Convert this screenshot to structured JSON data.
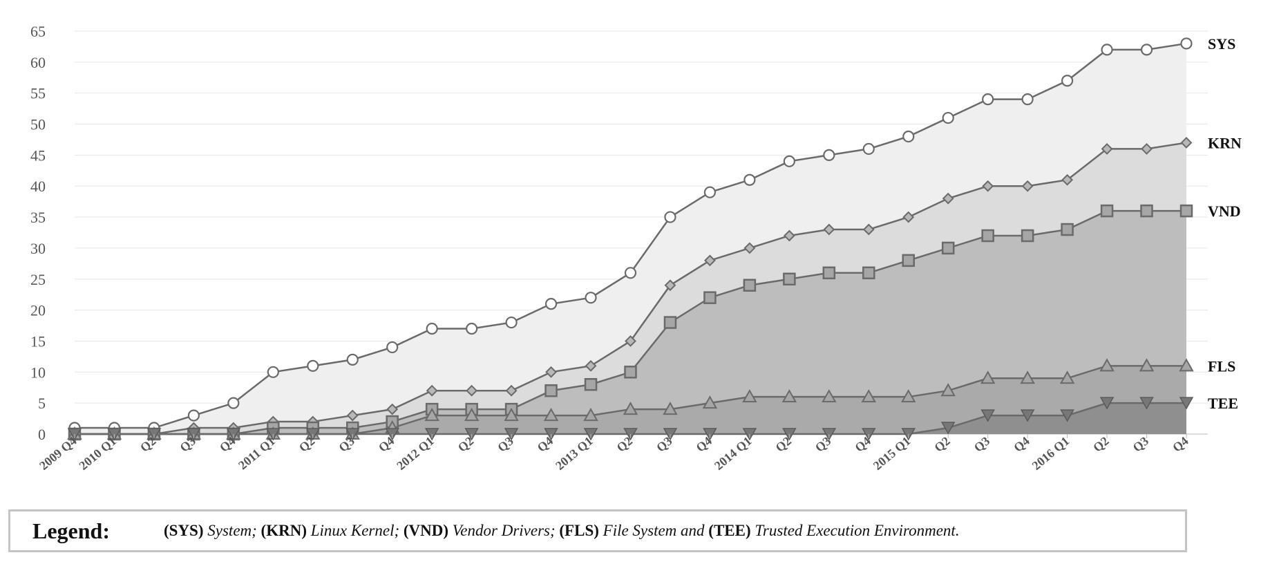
{
  "chart_data": {
    "type": "area",
    "x": [
      "2009 Q4",
      "2010 Q1",
      "Q2",
      "Q3",
      "Q4",
      "2011 Q1",
      "Q2",
      "Q3",
      "Q4",
      "2012 Q1",
      "Q2",
      "Q3",
      "Q4",
      "2013 Q1",
      "Q2",
      "Q3",
      "Q4",
      "2014 Q1",
      "Q2",
      "Q3",
      "Q4",
      "2015 Q1",
      "Q2",
      "Q3",
      "Q4",
      "2016 Q1",
      "Q2",
      "Q3",
      "Q4"
    ],
    "ylim": [
      0,
      65
    ],
    "yticks": [
      0,
      5,
      10,
      15,
      20,
      25,
      30,
      35,
      40,
      45,
      50,
      55,
      60,
      65
    ],
    "grid": true,
    "series": [
      {
        "name": "SYS",
        "marker": "circle",
        "fill": "#efefef",
        "values": [
          1,
          1,
          1,
          3,
          5,
          10,
          11,
          12,
          14,
          17,
          17,
          18,
          21,
          22,
          26,
          35,
          39,
          41,
          44,
          45,
          46,
          48,
          51,
          54,
          54,
          57,
          62,
          62,
          63
        ]
      },
      {
        "name": "KRN",
        "marker": "diamond",
        "fill": "#dcdcdc",
        "values": [
          0,
          0,
          0,
          1,
          1,
          2,
          2,
          3,
          4,
          7,
          7,
          7,
          10,
          11,
          15,
          24,
          28,
          30,
          32,
          33,
          33,
          35,
          38,
          40,
          40,
          41,
          46,
          46,
          47
        ]
      },
      {
        "name": "VND",
        "marker": "square",
        "fill": "#bdbdbd",
        "values": [
          0,
          0,
          0,
          0,
          0,
          1,
          1,
          1,
          2,
          4,
          4,
          4,
          7,
          8,
          10,
          18,
          22,
          24,
          25,
          26,
          26,
          28,
          30,
          32,
          32,
          33,
          36,
          36,
          36
        ]
      },
      {
        "name": "FLS",
        "marker": "triangle-up",
        "fill": "#aaaaaa",
        "values": [
          0,
          0,
          0,
          0,
          0,
          0,
          0,
          0,
          1,
          3,
          3,
          3,
          3,
          3,
          4,
          4,
          5,
          6,
          6,
          6,
          6,
          6,
          7,
          9,
          9,
          9,
          11,
          11,
          11
        ]
      },
      {
        "name": "TEE",
        "marker": "triangle-down",
        "fill": "#8f8f8f",
        "values": [
          0,
          0,
          0,
          0,
          0,
          0,
          0,
          0,
          0,
          0,
          0,
          0,
          0,
          0,
          0,
          0,
          0,
          0,
          0,
          0,
          0,
          0,
          1,
          3,
          3,
          3,
          5,
          5,
          5
        ]
      }
    ],
    "legend": {
      "title": "Legend:",
      "items": [
        {
          "abbr": "(SYS)",
          "desc": "System;"
        },
        {
          "abbr": "(KRN)",
          "desc": "Linux Kernel;"
        },
        {
          "abbr": "(VND)",
          "desc": "Vendor Drivers;"
        },
        {
          "abbr": "(FLS)",
          "desc": "File System and"
        },
        {
          "abbr": "(TEE)",
          "desc": "Trusted Execution Environment."
        }
      ]
    },
    "colors": {
      "line": "#6a6a6a",
      "marker_fill_open": "#ffffff",
      "marker_fill": "#a6a6a6",
      "grid": "#e6e6e6",
      "axis": "#bbbbbb"
    }
  }
}
